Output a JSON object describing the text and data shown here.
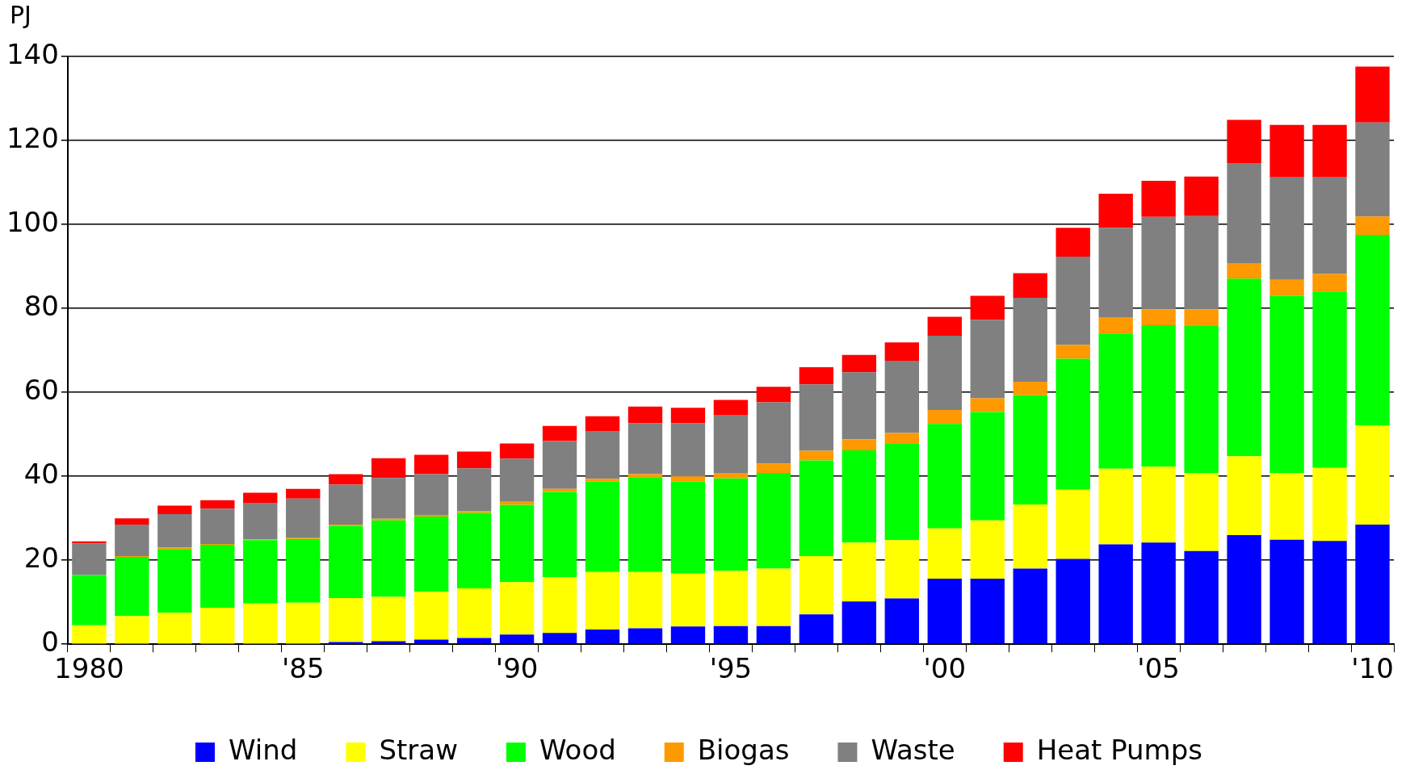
{
  "chart_data": {
    "type": "bar",
    "stacked": true,
    "ylabel": "PJ",
    "categories": [
      "1980",
      null,
      null,
      null,
      null,
      "'85",
      null,
      null,
      null,
      null,
      "'90",
      null,
      null,
      null,
      null,
      "'95",
      null,
      null,
      null,
      null,
      "'00",
      null,
      null,
      null,
      null,
      "'05",
      null,
      null,
      null,
      null,
      "'10"
    ],
    "series": [
      {
        "name": "Wind",
        "color": "#0000ff",
        "values": [
          0,
          0,
          0,
          0,
          0,
          null,
          0.5,
          0.7,
          1.1,
          1.5,
          2.3,
          2.7,
          3.5,
          3.8,
          4.2,
          4.3,
          4.3,
          7.1,
          10.2,
          10.9,
          15.6,
          15.6,
          18,
          20.3,
          23.8,
          24.2,
          22.2,
          26,
          24.9,
          24.6,
          28.5
        ]
      },
      {
        "name": "Straw",
        "color": "#ffff00",
        "values": [
          4.5,
          6.7,
          7.5,
          8.7,
          9.7,
          9.9,
          10.5,
          10.6,
          11.4,
          11.8,
          12.5,
          13.3,
          13.7,
          13.4,
          12.6,
          13.2,
          13.7,
          13.9,
          14,
          13.9,
          12,
          13.9,
          15.3,
          16.5,
          18,
          18.1,
          18.6,
          18.8,
          15.9,
          17.4,
          23.6
        ]
      },
      {
        "name": "Wood",
        "color": "#00ff00",
        "values": [
          12,
          14.1,
          15.2,
          15,
          15.1,
          15.2,
          17.2,
          18.2,
          17.9,
          18,
          18.4,
          20.3,
          21.6,
          22.6,
          22,
          22,
          22.8,
          22.8,
          22,
          22.9,
          24.9,
          25.8,
          26,
          31.2,
          32.2,
          33.7,
          35,
          42.3,
          42.2,
          42,
          45.4
        ]
      },
      {
        "name": "Biogas",
        "color": "#ff9900",
        "values": [
          0,
          0.2,
          0.3,
          0.2,
          0.2,
          0.3,
          0.3,
          0.4,
          0.4,
          0.4,
          0.7,
          0.7,
          0.6,
          0.7,
          1.2,
          1.3,
          2.2,
          2.3,
          2.6,
          2.6,
          3.3,
          3.3,
          3.2,
          3.3,
          3.9,
          3.8,
          4,
          3.7,
          3.8,
          4.2,
          4.4
        ]
      },
      {
        "name": "Waste",
        "color": "#808080",
        "values": [
          7.5,
          7.5,
          8,
          8.4,
          8.7,
          9.3,
          9.5,
          9.7,
          9.7,
          10.2,
          10.3,
          11.4,
          11.4,
          12.1,
          12.6,
          13.7,
          14.6,
          15.8,
          16,
          17.2,
          17.7,
          18.7,
          20,
          21,
          21.3,
          22,
          22.2,
          23.8,
          24.4,
          23,
          22.4
        ]
      },
      {
        "name": "Heat Pumps",
        "color": "#ff0000",
        "values": [
          0.5,
          1.5,
          2,
          2,
          2.4,
          2.3,
          2.5,
          4.7,
          4.6,
          4,
          3.6,
          3.6,
          3.5,
          4,
          3.7,
          3.7,
          3.7,
          4.1,
          4.1,
          4.4,
          4.5,
          5.7,
          5.9,
          6.9,
          8.1,
          8.6,
          9.4,
          10.3,
          12.5,
          12.5,
          13.3
        ]
      }
    ],
    "ylim": [
      0,
      140
    ],
    "yticks": [
      0,
      20,
      40,
      60,
      80,
      100,
      120,
      140
    ],
    "grid": "y",
    "legend": "bottom"
  }
}
